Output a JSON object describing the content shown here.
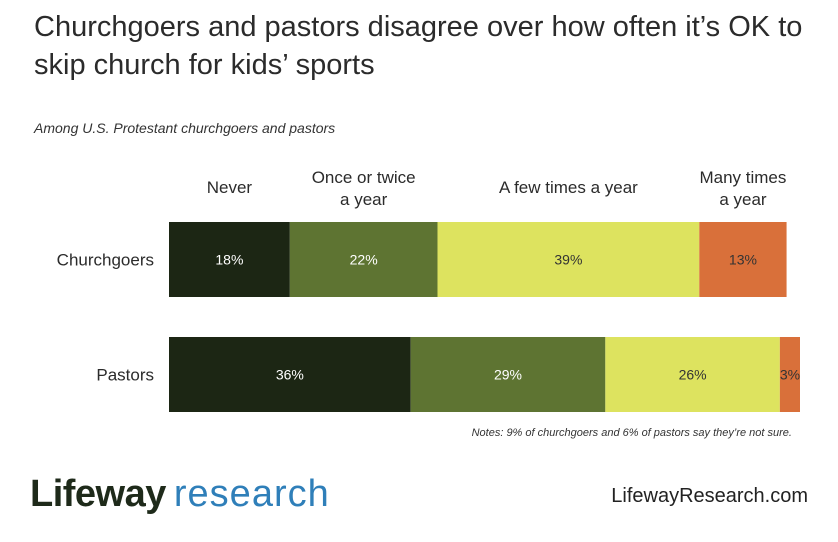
{
  "chart_data": {
    "type": "bar",
    "orientation": "horizontal-stacked",
    "title": "Churchgoers and pastors disagree over how often it’s OK to skip church for kids’ sports",
    "subtitle": "Among U.S. Protestant churchgoers and pastors",
    "categories": [
      "Churchgoers",
      "Pastors"
    ],
    "series": [
      {
        "name": "Never",
        "header_lines": [
          "Never"
        ],
        "color": "#1c2614",
        "label_color": "#ffffff",
        "values": [
          18,
          36
        ],
        "labels": [
          "18%",
          "36%"
        ]
      },
      {
        "name": "Once or twice a year",
        "header_lines": [
          "Once or twice",
          "a year"
        ],
        "color": "#5e7432",
        "label_color": "#ffffff",
        "values": [
          22,
          29
        ],
        "labels": [
          "22%",
          "29%"
        ]
      },
      {
        "name": "A few times a year",
        "header_lines": [
          "A few times a year"
        ],
        "color": "#dde35f",
        "label_color": "#333333",
        "values": [
          39,
          26
        ],
        "labels": [
          "39%",
          "26%"
        ]
      },
      {
        "name": "Many times a year",
        "header_lines": [
          "Many times",
          "a year"
        ],
        "color": "#d9703a",
        "label_color": "#333333",
        "values": [
          13,
          3
        ],
        "labels": [
          "13%",
          "3%"
        ]
      }
    ],
    "xlim": [
      0,
      94
    ],
    "grid": false,
    "legend": "top",
    "note": "Notes: 9% of churchgoers and 6% of pastors say they’re not sure."
  },
  "footer": {
    "logo_word1": "Lifeway",
    "logo_word2": "research",
    "site": "LifewayResearch.com"
  }
}
